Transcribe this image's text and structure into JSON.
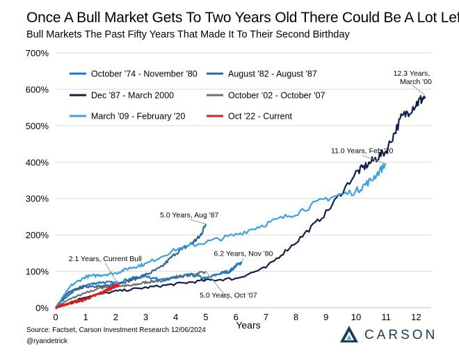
{
  "title": "Once A Bull Market Gets To Two Years Old There Could Be A Lot Left",
  "subtitle": "Bull Markets The Past Fifty Years That Made It To Their Second Birthday",
  "source": "Source: Factset, Carson Investment Research 12/06/2024",
  "handle": "@ryandetrick",
  "brand": {
    "name": "CARSON",
    "logo_icon": "carson-triangle-icon"
  },
  "colors": {
    "s1974": "#1f77c4",
    "s1982": "#2f6596",
    "s1987": "#0f1f4a",
    "s2002": "#6e6e6e",
    "s2009": "#3ba0e0",
    "s2022": "#e11b1b",
    "grid": "#d9d9d9"
  },
  "chart_data": {
    "type": "line",
    "title": "Once A Bull Market Gets To Two Years Old There Could Be A Lot Left",
    "xlabel": "Years",
    "ylabel": "",
    "xlim": [
      0,
      12.5
    ],
    "ylim": [
      0,
      700
    ],
    "x_ticks": [
      0,
      1,
      2,
      3,
      4,
      5,
      6,
      7,
      8,
      9,
      10,
      11,
      12
    ],
    "y_ticks": [
      "0%",
      "100%",
      "200%",
      "300%",
      "400%",
      "500%",
      "600%",
      "700%"
    ],
    "y_tick_values": [
      0,
      100,
      200,
      300,
      400,
      500,
      600,
      700
    ],
    "series": [
      {
        "key": "s1974",
        "name": "October '74 - November '80",
        "x": [
          0,
          0.3,
          0.6,
          1.0,
          1.5,
          2.0,
          2.5,
          3.0,
          3.5,
          4.0,
          4.5,
          5.0,
          5.5,
          5.8,
          6.0,
          6.2
        ],
        "values": [
          0,
          25,
          45,
          62,
          70,
          68,
          80,
          88,
          75,
          82,
          90,
          80,
          95,
          100,
          115,
          125
        ]
      },
      {
        "key": "s1982",
        "name": "August '82 - August '87",
        "x": [
          0,
          0.4,
          0.8,
          1.2,
          1.6,
          2.0,
          2.5,
          3.0,
          3.5,
          4.0,
          4.5,
          4.8,
          5.0
        ],
        "values": [
          0,
          40,
          55,
          60,
          58,
          65,
          75,
          90,
          110,
          150,
          175,
          195,
          230
        ]
      },
      {
        "key": "s1987",
        "name": "Dec '87 - March 2000",
        "x": [
          0,
          1,
          2,
          3,
          4,
          5,
          6,
          7,
          8,
          9,
          10,
          10.5,
          11,
          11.5,
          12,
          12.3
        ],
        "values": [
          0,
          30,
          45,
          55,
          65,
          75,
          80,
          110,
          180,
          260,
          370,
          400,
          430,
          520,
          560,
          580
        ]
      },
      {
        "key": "s2002",
        "name": "October '02 - October '07",
        "x": [
          0,
          0.5,
          1.0,
          1.5,
          2.0,
          2.5,
          3.0,
          3.5,
          4.0,
          4.5,
          5.0
        ],
        "values": [
          0,
          25,
          40,
          55,
          60,
          60,
          70,
          75,
          85,
          90,
          100
        ]
      },
      {
        "key": "s2009",
        "name": "March '09 - February '20",
        "x": [
          0,
          0.5,
          1.0,
          1.5,
          2.0,
          2.5,
          3.0,
          4.0,
          5.0,
          6.0,
          7.0,
          8.0,
          9.0,
          10.0,
          10.5,
          11.0
        ],
        "values": [
          0,
          60,
          85,
          90,
          95,
          110,
          120,
          160,
          180,
          200,
          230,
          260,
          300,
          320,
          350,
          395
        ]
      },
      {
        "key": "s2022",
        "name": "Oct '22 - Current",
        "x": [
          0,
          0.3,
          0.6,
          0.9,
          1.2,
          1.5,
          1.8,
          2.0,
          2.1
        ],
        "values": [
          0,
          8,
          15,
          20,
          30,
          40,
          52,
          60,
          62
        ]
      }
    ],
    "annotations": [
      {
        "text": "12.3 Years,",
        "x": 12.3,
        "y": 583,
        "ax": 11.85,
        "ay": 618,
        "line2": "March '00"
      },
      {
        "text": "11.0 Years, Feb '20",
        "x": 11.0,
        "y": 395,
        "ax": 10.2,
        "ay": 424
      },
      {
        "text": "5.0 Years, Aug '87",
        "x": 5.0,
        "y": 230,
        "ax": 4.45,
        "ay": 248
      },
      {
        "text": "6.2 Years, Nov '80",
        "x": 6.2,
        "y": 125,
        "ax": 6.25,
        "ay": 142
      },
      {
        "text": "2.1 Years, Current Bull",
        "x": 2.1,
        "y": 62,
        "ax": 1.65,
        "ay": 128
      },
      {
        "text": "5.0 Years, Oct '07",
        "x": 5.0,
        "y": 100,
        "ax": 5.75,
        "ay": 28
      }
    ],
    "legend_placement": "top-left"
  }
}
